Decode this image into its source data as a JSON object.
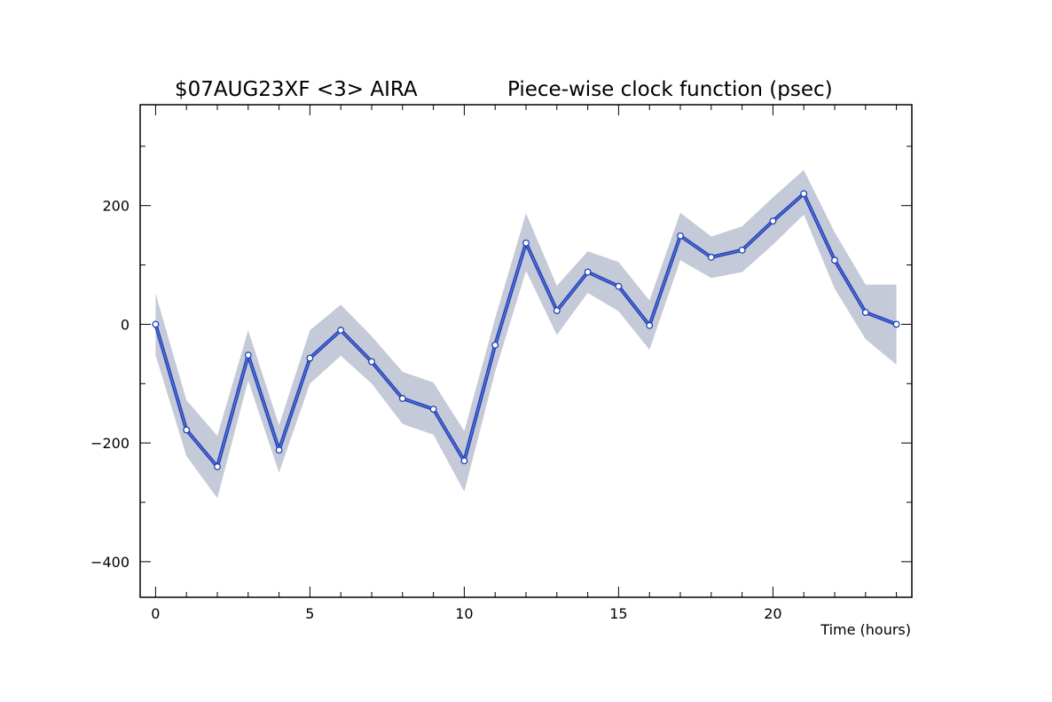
{
  "chart_data": {
    "type": "line",
    "title_left": "$07AUG23XF <3>  AIRA",
    "title_right": "Piece-wise clock function (psec)",
    "xlabel": "Time (hours)",
    "ylabel": "",
    "xlim": [
      -0.5,
      24.5
    ],
    "ylim": [
      -460,
      370
    ],
    "x_ticks": [
      0,
      5,
      10,
      15,
      20
    ],
    "y_ticks": [
      -400,
      -200,
      0,
      200
    ],
    "x_minor_step": 1,
    "y_minor_step": 100,
    "grid": false,
    "series": [
      {
        "x": [
          0,
          1,
          2,
          3,
          4,
          5,
          6,
          7,
          8,
          9,
          10,
          11,
          12,
          13,
          14,
          15,
          16,
          17,
          18,
          19,
          20,
          21,
          22,
          23,
          24
        ],
        "values": [
          0,
          -178,
          -240,
          -52,
          -212,
          -57,
          -10,
          -63,
          -125,
          -143,
          -230,
          -35,
          137,
          23,
          88,
          64,
          -2,
          149,
          113,
          125,
          174,
          220,
          108,
          20,
          0
        ],
        "upper": [
          52,
          -128,
          -188,
          -10,
          -170,
          -10,
          33,
          -20,
          -80,
          -98,
          -180,
          10,
          187,
          65,
          123,
          105,
          40,
          188,
          148,
          165,
          214,
          260,
          155,
          67,
          67
        ],
        "lower": [
          -52,
          -222,
          -293,
          -95,
          -250,
          -100,
          -53,
          -100,
          -168,
          -186,
          -282,
          -80,
          90,
          -18,
          53,
          22,
          -43,
          108,
          78,
          88,
          134,
          185,
          60,
          -25,
          -68
        ]
      }
    ],
    "colors": {
      "line": "#2241b8",
      "band": "#c5cad9",
      "marker_fill": "#ffffff",
      "axis": "#000000"
    }
  }
}
